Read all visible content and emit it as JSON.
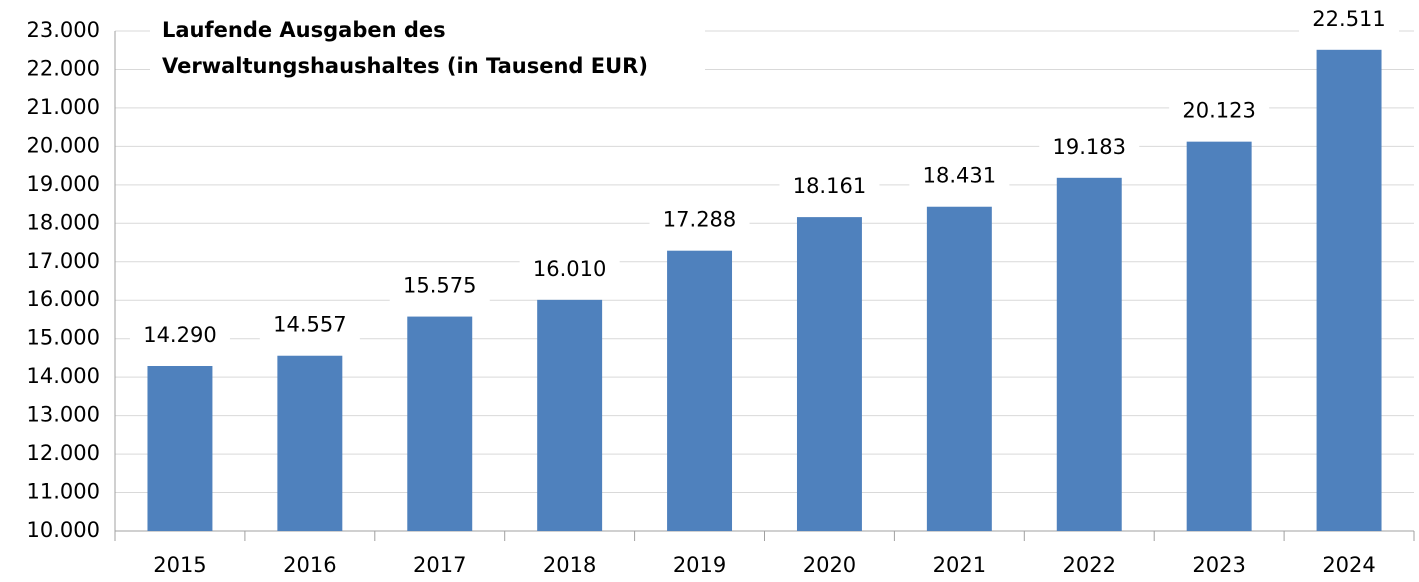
{
  "chart_data": {
    "type": "bar",
    "title": [
      "Laufende Ausgaben des",
      "Verwaltungshaushaltes (in Tausend EUR)"
    ],
    "categories": [
      "2015",
      "2016",
      "2017",
      "2018",
      "2019",
      "2020",
      "2021",
      "2022",
      "2023",
      "2024"
    ],
    "values": [
      14290,
      14557,
      15575,
      16010,
      17288,
      18161,
      18431,
      19183,
      20123,
      22511
    ],
    "value_labels": [
      "14.290",
      "14.557",
      "15.575",
      "16.010",
      "17.288",
      "18.161",
      "18.431",
      "19.183",
      "20.123",
      "22.511"
    ],
    "color": "#4f81bd",
    "ylim": [
      10000,
      23000
    ],
    "yticks": [
      {
        "value": 10000,
        "label": "10.000"
      },
      {
        "value": 11000,
        "label": "11.000"
      },
      {
        "value": 12000,
        "label": "12.000"
      },
      {
        "value": 13000,
        "label": "13.000"
      },
      {
        "value": 14000,
        "label": "14.000"
      },
      {
        "value": 15000,
        "label": "15.000"
      },
      {
        "value": 16000,
        "label": "16.000"
      },
      {
        "value": 17000,
        "label": "17.000"
      },
      {
        "value": 18000,
        "label": "18.000"
      },
      {
        "value": 19000,
        "label": "19.000"
      },
      {
        "value": 20000,
        "label": "20.000"
      },
      {
        "value": 21000,
        "label": "21.000"
      },
      {
        "value": 22000,
        "label": "22.000"
      },
      {
        "value": 23000,
        "label": "23.000"
      }
    ],
    "grid": true
  }
}
